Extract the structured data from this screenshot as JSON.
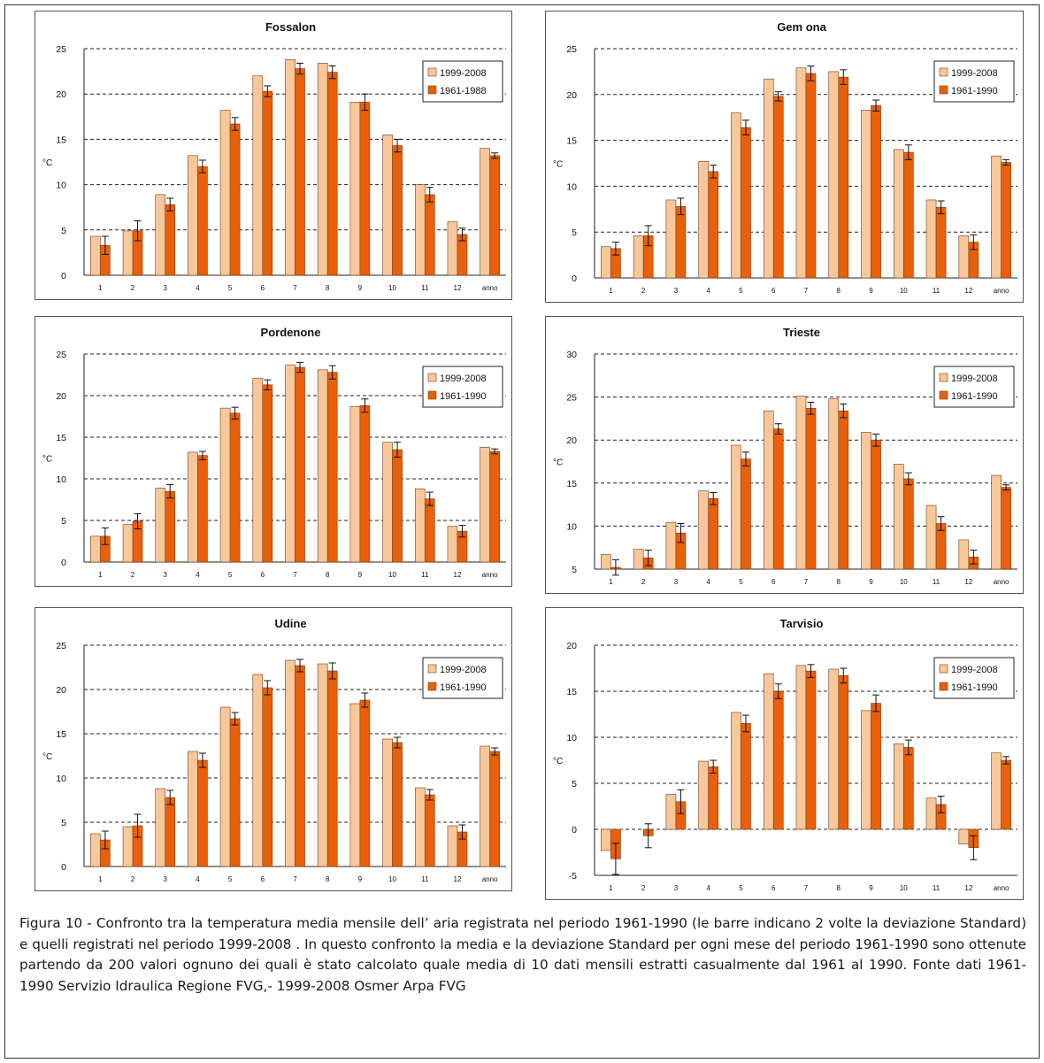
{
  "caption": "Figura 10 - Confronto tra la temperatura media mensile dell’ aria registrata nel periodo 1961-1990 (le barre indicano 2 volte la deviazione Standard) e quelli registrati nel periodo 1999-2008 . In questo confronto la media e la deviazione Standard per ogni mese del periodo 1961-1990 sono ottenute partendo da 200 valori ognuno dei quali è stato calcolato quale media di 10 dati mensili estratti casualmente dal 1961 al 1990. Fonte dati 1961-1990 Servizio Idraulica Regione FVG,- 1999-2008 Osmer Arpa FVG",
  "colors": {
    "series1": "#f8c79a",
    "series2": "#e8600c",
    "bar_edge": "#7a3a10"
  },
  "chart_data": [
    {
      "type": "bar",
      "title": "Fossalon",
      "ylabel": "°C",
      "ylim": [
        0,
        25
      ],
      "yticks": [
        0,
        5,
        10,
        15,
        20,
        25
      ],
      "categories": [
        "1",
        "2",
        "3",
        "4",
        "5",
        "6",
        "7",
        "8",
        "9",
        "10",
        "11",
        "12",
        "anno"
      ],
      "series": [
        {
          "name": "1999-2008",
          "values": [
            4.3,
            4.9,
            8.9,
            13.2,
            18.2,
            22.0,
            23.8,
            23.4,
            19.1,
            15.5,
            10.0,
            5.9,
            14.0
          ]
        },
        {
          "name": "1961-1988",
          "values": [
            3.3,
            4.9,
            7.8,
            12.0,
            16.7,
            20.3,
            22.8,
            22.4,
            19.1,
            14.3,
            8.9,
            4.5,
            13.2
          ],
          "error": [
            1.0,
            1.1,
            0.7,
            0.7,
            0.7,
            0.6,
            0.6,
            0.7,
            0.9,
            0.7,
            0.8,
            0.7,
            0.3
          ]
        }
      ],
      "legend": "top-right",
      "grid": true
    },
    {
      "type": "bar",
      "title": "Gem ona",
      "ylabel": "°C",
      "ylim": [
        0,
        25
      ],
      "yticks": [
        0,
        5,
        10,
        15,
        20,
        25
      ],
      "categories": [
        "1",
        "2",
        "3",
        "4",
        "5",
        "6",
        "7",
        "8",
        "9",
        "10",
        "11",
        "12",
        "anno"
      ],
      "series": [
        {
          "name": "1999-2008",
          "values": [
            3.4,
            4.6,
            8.5,
            12.7,
            18.0,
            21.7,
            22.9,
            22.5,
            18.3,
            14.0,
            8.5,
            4.6,
            13.3
          ]
        },
        {
          "name": "1961-1990",
          "values": [
            3.2,
            4.6,
            7.8,
            11.6,
            16.4,
            19.8,
            22.3,
            21.9,
            18.8,
            13.7,
            7.7,
            3.9,
            12.6
          ],
          "error": [
            0.7,
            1.1,
            0.9,
            0.7,
            0.8,
            0.5,
            0.8,
            0.8,
            0.6,
            0.8,
            0.7,
            0.8,
            0.3
          ]
        }
      ],
      "legend": "top-right",
      "grid": true
    },
    {
      "type": "bar",
      "title": "Pordenone",
      "ylabel": "°C",
      "ylim": [
        0,
        25
      ],
      "yticks": [
        0,
        5,
        10,
        15,
        20,
        25
      ],
      "categories": [
        "1",
        "2",
        "3",
        "4",
        "5",
        "6",
        "7",
        "8",
        "9",
        "10",
        "11",
        "12",
        "anno"
      ],
      "series": [
        {
          "name": "1999-2008",
          "values": [
            3.1,
            4.5,
            8.9,
            13.2,
            18.5,
            22.1,
            23.7,
            23.1,
            18.7,
            14.4,
            8.8,
            4.3,
            13.8
          ]
        },
        {
          "name": "1961-1990",
          "values": [
            3.1,
            4.9,
            8.5,
            12.8,
            17.9,
            21.3,
            23.4,
            22.8,
            18.8,
            13.5,
            7.6,
            3.7,
            13.3
          ],
          "error": [
            1.0,
            0.9,
            0.8,
            0.5,
            0.7,
            0.6,
            0.6,
            0.8,
            0.8,
            0.9,
            0.8,
            0.7,
            0.3
          ]
        }
      ],
      "legend": "top-right",
      "grid": true
    },
    {
      "type": "bar",
      "title": "Trieste",
      "ylabel": "°C",
      "ylim": [
        5,
        30
      ],
      "yticks": [
        5,
        10,
        15,
        20,
        25,
        30
      ],
      "categories": [
        "1",
        "2",
        "3",
        "4",
        "5",
        "6",
        "7",
        "8",
        "9",
        "10",
        "11",
        "12",
        "anno"
      ],
      "series": [
        {
          "name": "1999-2008",
          "values": [
            6.7,
            7.3,
            10.4,
            14.1,
            19.4,
            23.4,
            25.1,
            24.8,
            20.9,
            17.2,
            12.4,
            8.4,
            15.9
          ]
        },
        {
          "name": "1961-1990",
          "values": [
            5.2,
            6.3,
            9.2,
            13.2,
            17.8,
            21.3,
            23.7,
            23.4,
            20.0,
            15.5,
            10.3,
            6.4,
            14.5
          ],
          "error": [
            0.9,
            0.9,
            1.1,
            0.7,
            0.8,
            0.6,
            0.7,
            0.8,
            0.7,
            0.7,
            0.8,
            0.8,
            0.3
          ]
        }
      ],
      "legend": "top-right",
      "grid": true
    },
    {
      "type": "bar",
      "title": "Udine",
      "ylabel": "°C",
      "ylim": [
        0,
        25
      ],
      "yticks": [
        0,
        5,
        10,
        15,
        20,
        25
      ],
      "categories": [
        "1",
        "2",
        "3",
        "4",
        "5",
        "6",
        "7",
        "8",
        "9",
        "10",
        "11",
        "12",
        "anno"
      ],
      "series": [
        {
          "name": "1999-2008",
          "values": [
            3.7,
            4.5,
            8.8,
            13.0,
            18.0,
            21.7,
            23.3,
            22.9,
            18.4,
            14.4,
            8.9,
            4.6,
            13.6
          ]
        },
        {
          "name": "1961-1990",
          "values": [
            3.0,
            4.6,
            7.8,
            12.0,
            16.7,
            20.2,
            22.7,
            22.1,
            18.8,
            14.0,
            8.1,
            3.9,
            13.0
          ],
          "error": [
            1.0,
            1.3,
            0.8,
            0.8,
            0.7,
            0.8,
            0.7,
            0.9,
            0.8,
            0.6,
            0.6,
            0.8,
            0.4
          ]
        }
      ],
      "legend": "top-right",
      "grid": true
    },
    {
      "type": "bar",
      "title": "Tarvisio",
      "ylabel": "°C",
      "ylim": [
        -5,
        20
      ],
      "yticks": [
        -5,
        0,
        5,
        10,
        15,
        20
      ],
      "categories": [
        "1",
        "2",
        "3",
        "4",
        "5",
        "6",
        "7",
        "8",
        "9",
        "10",
        "11",
        "12",
        "anno"
      ],
      "series": [
        {
          "name": "1999-2008",
          "values": [
            -2.3,
            0.0,
            3.8,
            7.4,
            12.7,
            16.9,
            17.8,
            17.4,
            12.9,
            9.3,
            3.4,
            -1.6,
            8.3
          ]
        },
        {
          "name": "1961-1990",
          "values": [
            -3.2,
            -0.7,
            3.0,
            6.8,
            11.5,
            15.0,
            17.2,
            16.7,
            13.7,
            8.9,
            2.7,
            -2.0,
            7.5
          ],
          "error": [
            1.7,
            1.3,
            1.3,
            0.7,
            0.9,
            0.8,
            0.7,
            0.8,
            0.9,
            0.8,
            0.9,
            1.3,
            0.4
          ]
        }
      ],
      "legend": "top-right",
      "grid": true
    }
  ]
}
